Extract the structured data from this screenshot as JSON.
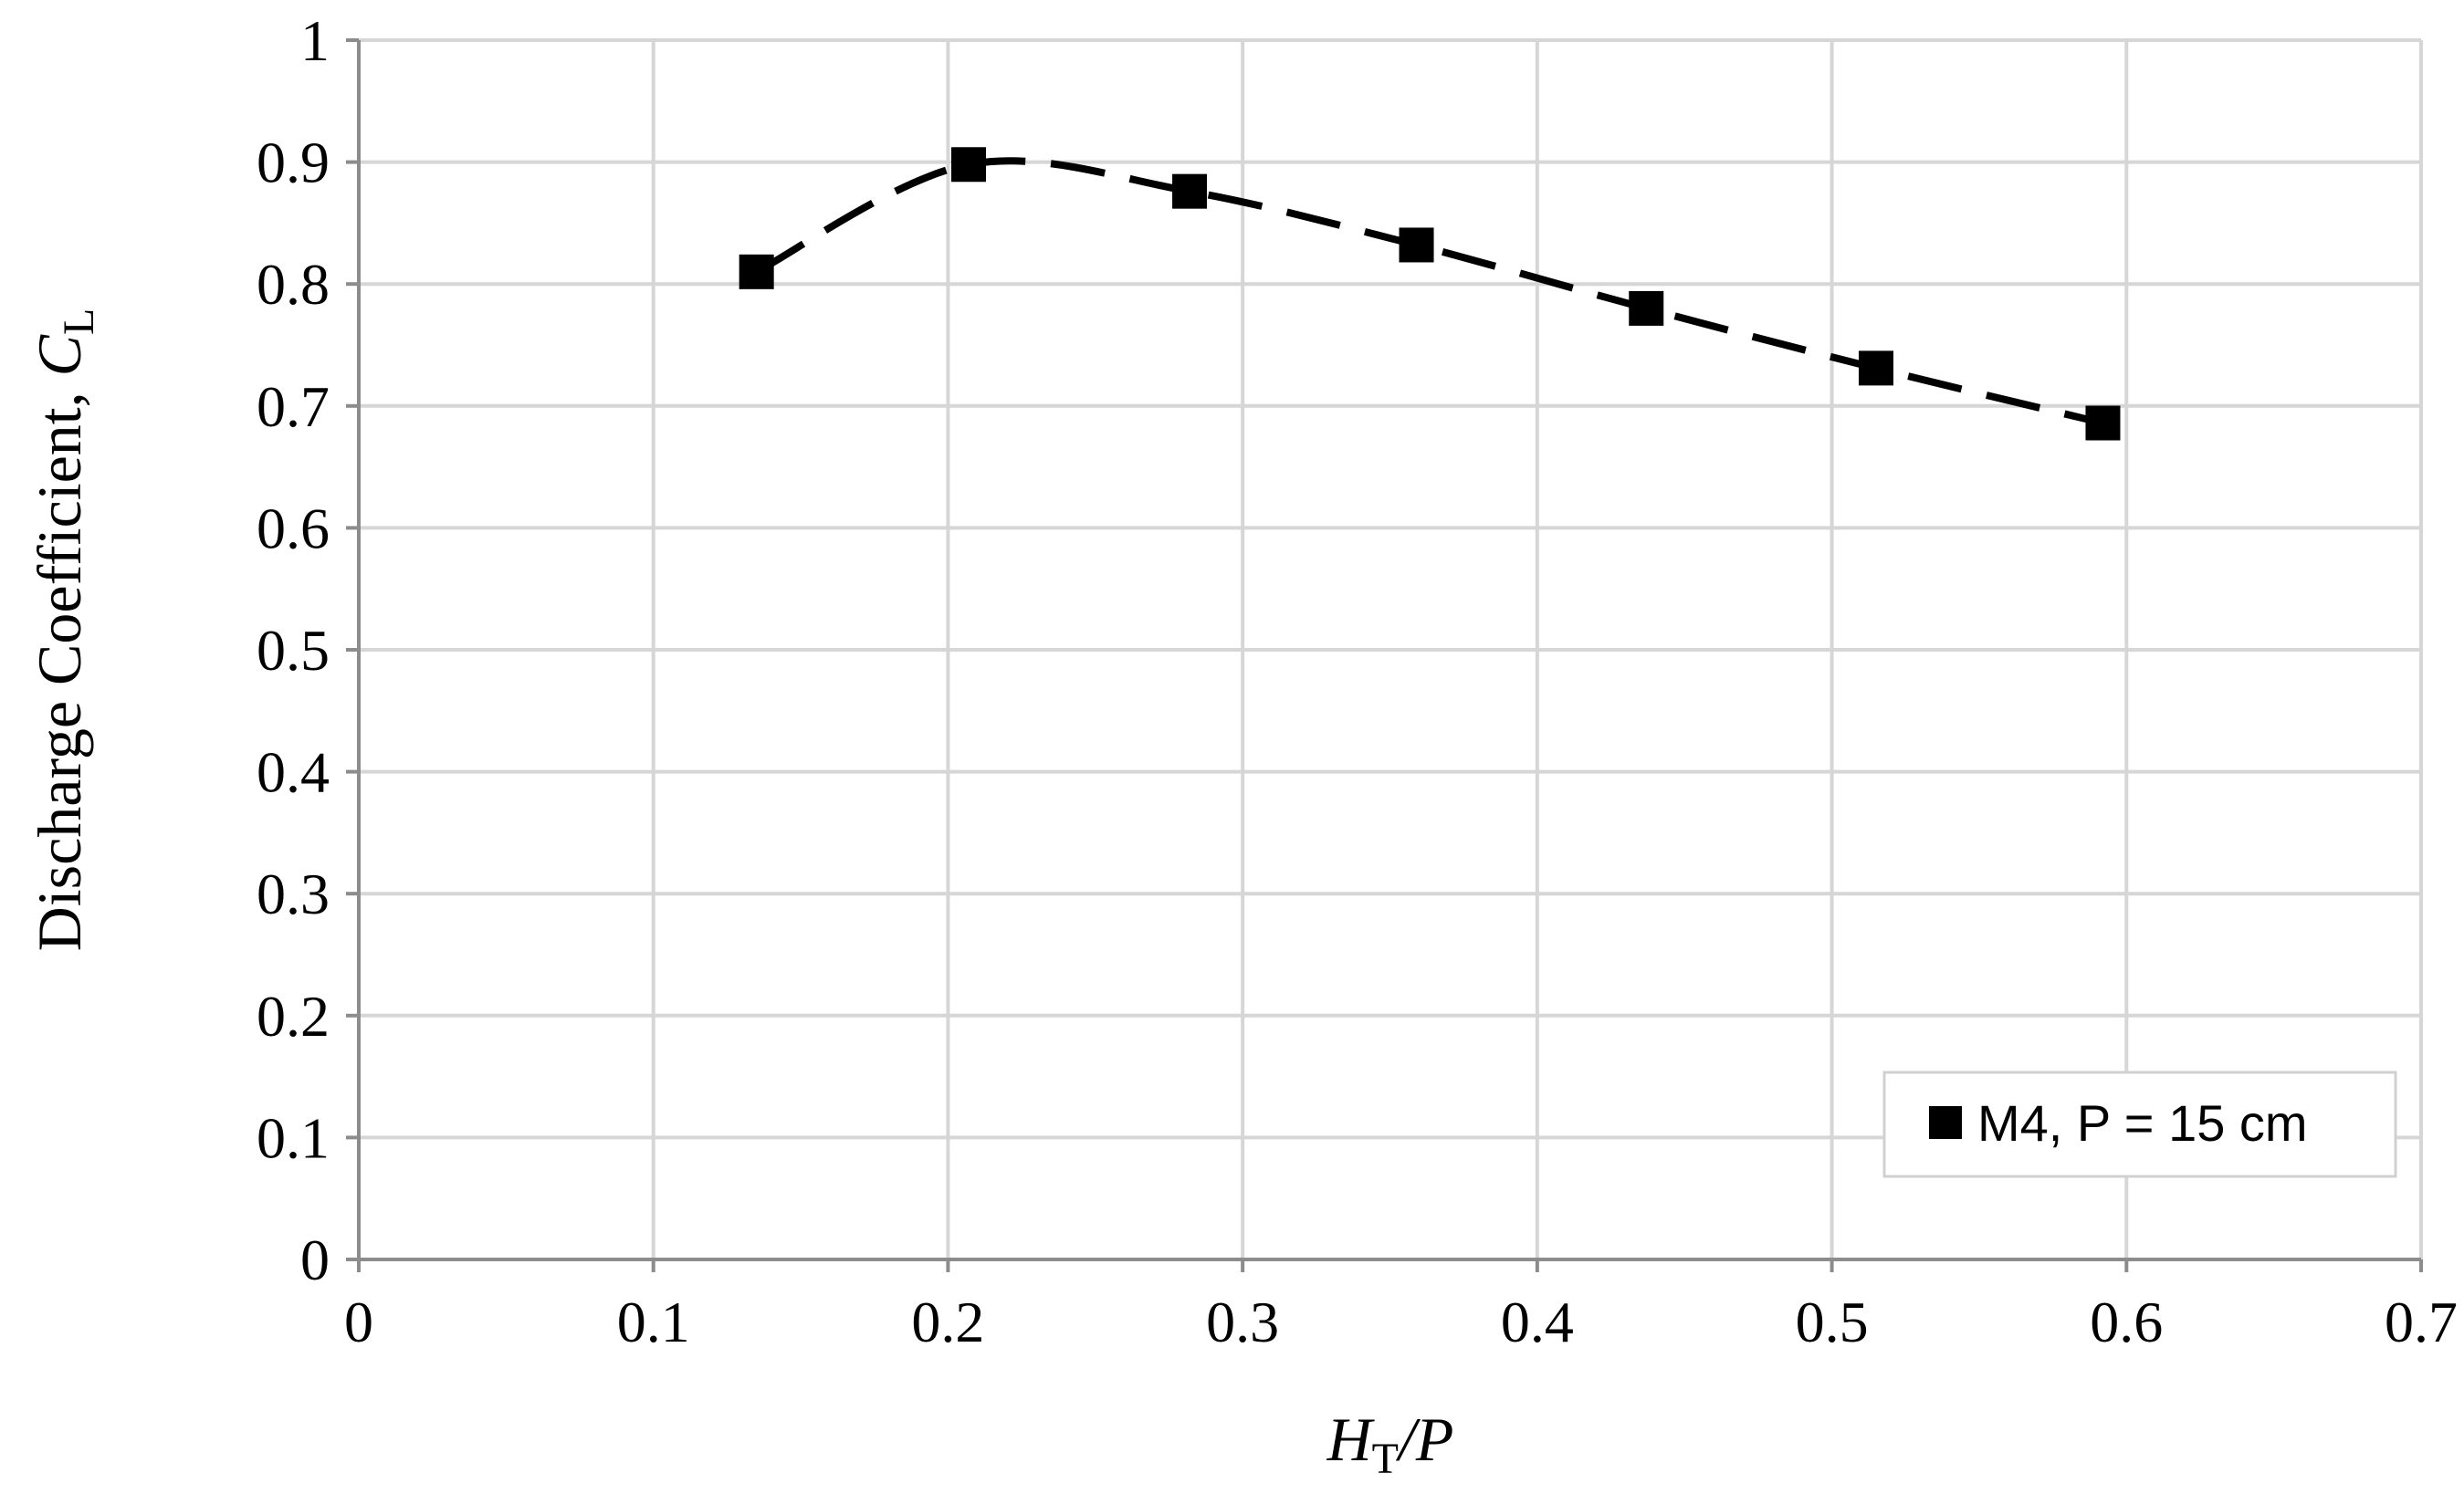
{
  "chart_data": {
    "type": "scatter",
    "xlim": [
      0,
      0.7
    ],
    "ylim": [
      0,
      1
    ],
    "x_ticks": [
      "0",
      "0.1",
      "0.2",
      "0.3",
      "0.4",
      "0.5",
      "0.6",
      "0.7"
    ],
    "y_ticks": [
      "0",
      "0.1",
      "0.2",
      "0.3",
      "0.4",
      "0.5",
      "0.6",
      "0.7",
      "0.8",
      "0.9",
      "1"
    ],
    "x_tick_values": [
      0,
      0.1,
      0.2,
      0.3,
      0.4,
      0.5,
      0.6,
      0.7
    ],
    "y_tick_values": [
      0,
      0.1,
      0.2,
      0.3,
      0.4,
      0.5,
      0.6,
      0.7,
      0.8,
      0.9,
      1
    ],
    "xlabel": {
      "main": "H",
      "sub": "T",
      "rest": "/P"
    },
    "ylabel": {
      "main": "Discharge Coefficient, ",
      "italic": "C",
      "sub": "L"
    },
    "grid": true,
    "legend_position": "bottom-right",
    "trendline": "dashed smooth curve",
    "series": [
      {
        "name": "M4, P = 15 cm",
        "marker": "square",
        "color": "#000000",
        "x": [
          0.135,
          0.207,
          0.282,
          0.359,
          0.437,
          0.515,
          0.592
        ],
        "y": [
          0.81,
          0.898,
          0.876,
          0.832,
          0.78,
          0.731,
          0.686
        ]
      }
    ]
  }
}
